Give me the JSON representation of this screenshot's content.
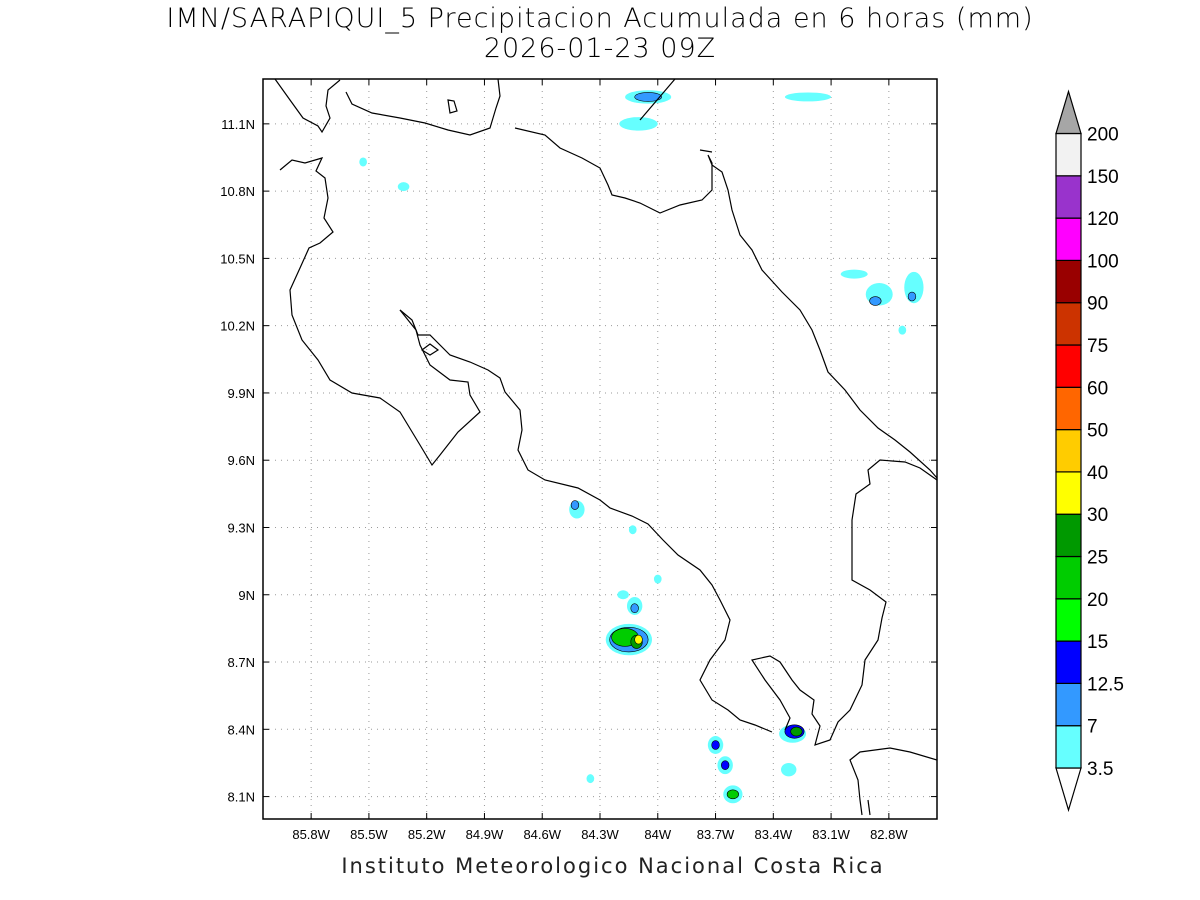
{
  "title": {
    "line1": "IMN/SARAPIQUI_5 Precipitacion Acumulada en 6 horas (mm)",
    "line2": "2026-01-23 09Z"
  },
  "footer": "Instituto Meteorologico Nacional Costa Rica",
  "map": {
    "lon_range": [
      -86.05,
      -82.55
    ],
    "lat_range": [
      8.0,
      11.3
    ],
    "lon_ticks": [
      {
        "value": -85.8,
        "label": "85.8W"
      },
      {
        "value": -85.5,
        "label": "85.5W"
      },
      {
        "value": -85.2,
        "label": "85.2W"
      },
      {
        "value": -84.9,
        "label": "84.9W"
      },
      {
        "value": -84.6,
        "label": "84.6W"
      },
      {
        "value": -84.3,
        "label": "84.3W"
      },
      {
        "value": -84.0,
        "label": "84W"
      },
      {
        "value": -83.7,
        "label": "83.7W"
      },
      {
        "value": -83.4,
        "label": "83.4W"
      },
      {
        "value": -83.1,
        "label": "83.1W"
      },
      {
        "value": -82.8,
        "label": "82.8W"
      }
    ],
    "lat_ticks": [
      {
        "value": 11.1,
        "label": "11.1N"
      },
      {
        "value": 10.8,
        "label": "10.8N"
      },
      {
        "value": 10.5,
        "label": "10.5N"
      },
      {
        "value": 10.2,
        "label": "10.2N"
      },
      {
        "value": 9.9,
        "label": "9.9N"
      },
      {
        "value": 9.6,
        "label": "9.6N"
      },
      {
        "value": 9.3,
        "label": "9.3N"
      },
      {
        "value": 9.0,
        "label": "9N"
      },
      {
        "value": 8.7,
        "label": "8.7N"
      },
      {
        "value": 8.4,
        "label": "8.4N"
      },
      {
        "value": 8.1,
        "label": "8.1N"
      }
    ],
    "grid": true,
    "precip_cells": [
      {
        "lon": -84.05,
        "lat": 11.22,
        "level": 1,
        "rx": 0.12,
        "ry": 0.03
      },
      {
        "lon": -84.05,
        "lat": 11.22,
        "level": 2,
        "rx": 0.07,
        "ry": 0.02
      },
      {
        "lon": -84.1,
        "lat": 11.1,
        "level": 1,
        "rx": 0.1,
        "ry": 0.03
      },
      {
        "lon": -83.22,
        "lat": 11.22,
        "level": 1,
        "rx": 0.12,
        "ry": 0.02
      },
      {
        "lon": -85.53,
        "lat": 10.93,
        "level": 1,
        "rx": 0.02,
        "ry": 0.02
      },
      {
        "lon": -85.32,
        "lat": 10.82,
        "level": 1,
        "rx": 0.03,
        "ry": 0.02
      },
      {
        "lon": -82.98,
        "lat": 10.43,
        "level": 1,
        "rx": 0.07,
        "ry": 0.02
      },
      {
        "lon": -82.85,
        "lat": 10.34,
        "level": 1,
        "rx": 0.07,
        "ry": 0.05
      },
      {
        "lon": -82.87,
        "lat": 10.31,
        "level": 2,
        "rx": 0.03,
        "ry": 0.02
      },
      {
        "lon": -82.67,
        "lat": 10.37,
        "level": 1,
        "rx": 0.05,
        "ry": 0.07
      },
      {
        "lon": -82.68,
        "lat": 10.33,
        "level": 2,
        "rx": 0.02,
        "ry": 0.02
      },
      {
        "lon": -82.73,
        "lat": 10.18,
        "level": 1,
        "rx": 0.02,
        "ry": 0.02
      },
      {
        "lon": -84.42,
        "lat": 9.38,
        "level": 1,
        "rx": 0.04,
        "ry": 0.04
      },
      {
        "lon": -84.43,
        "lat": 9.4,
        "level": 2,
        "rx": 0.02,
        "ry": 0.02
      },
      {
        "lon": -84.13,
        "lat": 9.29,
        "level": 1,
        "rx": 0.02,
        "ry": 0.02
      },
      {
        "lon": -84.0,
        "lat": 9.07,
        "level": 1,
        "rx": 0.02,
        "ry": 0.02
      },
      {
        "lon": -84.18,
        "lat": 9.0,
        "level": 1,
        "rx": 0.03,
        "ry": 0.02
      },
      {
        "lon": -84.12,
        "lat": 8.95,
        "level": 1,
        "rx": 0.04,
        "ry": 0.04
      },
      {
        "lon": -84.12,
        "lat": 8.94,
        "level": 2,
        "rx": 0.02,
        "ry": 0.02
      },
      {
        "lon": -84.15,
        "lat": 8.8,
        "level": 1,
        "rx": 0.12,
        "ry": 0.07
      },
      {
        "lon": -84.15,
        "lat": 8.8,
        "level": 2,
        "rx": 0.1,
        "ry": 0.055
      },
      {
        "lon": -84.17,
        "lat": 8.81,
        "level": 5,
        "rx": 0.07,
        "ry": 0.04
      },
      {
        "lon": -84.11,
        "lat": 8.79,
        "level": 6,
        "rx": 0.03,
        "ry": 0.03
      },
      {
        "lon": -84.1,
        "lat": 8.8,
        "level": 7,
        "rx": 0.02,
        "ry": 0.02
      },
      {
        "lon": -83.7,
        "lat": 8.33,
        "level": 1,
        "rx": 0.04,
        "ry": 0.04
      },
      {
        "lon": -83.7,
        "lat": 8.33,
        "level": 3,
        "rx": 0.02,
        "ry": 0.02
      },
      {
        "lon": -83.65,
        "lat": 8.24,
        "level": 1,
        "rx": 0.04,
        "ry": 0.04
      },
      {
        "lon": -83.65,
        "lat": 8.24,
        "level": 3,
        "rx": 0.02,
        "ry": 0.02
      },
      {
        "lon": -83.61,
        "lat": 8.11,
        "level": 1,
        "rx": 0.05,
        "ry": 0.04
      },
      {
        "lon": -83.61,
        "lat": 8.11,
        "level": 5,
        "rx": 0.03,
        "ry": 0.02
      },
      {
        "lon": -83.3,
        "lat": 8.38,
        "level": 1,
        "rx": 0.07,
        "ry": 0.04
      },
      {
        "lon": -83.29,
        "lat": 8.39,
        "level": 3,
        "rx": 0.05,
        "ry": 0.03
      },
      {
        "lon": -83.28,
        "lat": 8.39,
        "level": 6,
        "rx": 0.03,
        "ry": 0.02
      },
      {
        "lon": -83.32,
        "lat": 8.22,
        "level": 1,
        "rx": 0.04,
        "ry": 0.03
      },
      {
        "lon": -84.35,
        "lat": 8.18,
        "level": 1,
        "rx": 0.02,
        "ry": 0.02
      }
    ]
  },
  "colorbar": {
    "levels": [
      "3.5",
      "7",
      "12.5",
      "15",
      "20",
      "25",
      "30",
      "40",
      "50",
      "60",
      "75",
      "90",
      "100",
      "120",
      "150",
      "200"
    ],
    "colors": [
      "#ffffff",
      "#66ffff",
      "#3399ff",
      "#0000ff",
      "#00ff00",
      "#00cc00",
      "#009900",
      "#ffff00",
      "#ffcc00",
      "#ff6600",
      "#ff0000",
      "#cc3300",
      "#990000",
      "#ff00ff",
      "#9933cc",
      "#f2f2f2",
      "#a6a6a6"
    ]
  }
}
